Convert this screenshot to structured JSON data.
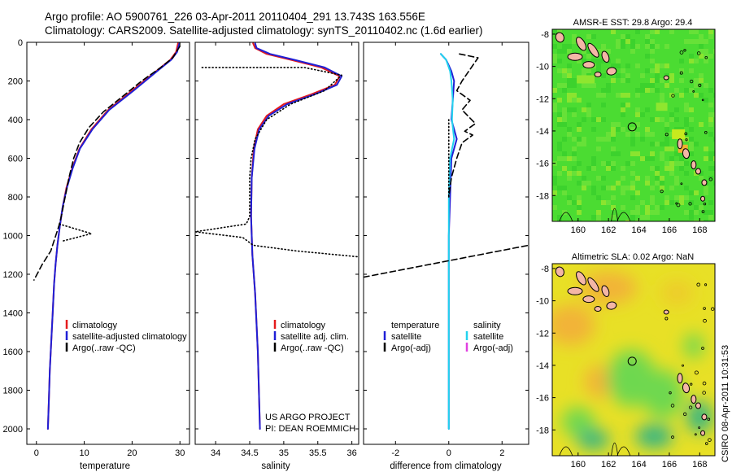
{
  "header": {
    "line1": "Argo profile: AO 5900761_226 03-Apr-2011 20110404_291 13.743S 163.556E",
    "line2": "Climatology: CARS2009. Satellite-adjusted climatology: synTS_20110402.nc (1.6d earlier)"
  },
  "chart_data": [
    {
      "id": "temperature",
      "type": "line",
      "xlabel": "temperature",
      "xlim": [
        -2,
        32
      ],
      "ylim": [
        2080,
        0
      ],
      "xticks": [
        0,
        10,
        20,
        30
      ],
      "yticks": [
        0,
        200,
        400,
        600,
        800,
        1000,
        1200,
        1400,
        1600,
        1800,
        2000
      ],
      "legend": {
        "placement": "bottom-left",
        "entries": [
          "climatology",
          "satellite-adjusted climatology",
          "Argo(..raw -QC)"
        ]
      },
      "series": [
        {
          "name": "climatology",
          "color": "#e41a1c",
          "style": "solid",
          "points": [
            [
              29.6,
              5
            ],
            [
              29.2,
              50
            ],
            [
              28,
              90
            ],
            [
              25,
              150
            ],
            [
              20,
              250
            ],
            [
              15,
              350
            ],
            [
              11.5,
              450
            ],
            [
              9,
              550
            ],
            [
              7.5,
              650
            ],
            [
              6.3,
              750
            ],
            [
              5.5,
              850
            ],
            [
              4.9,
              950
            ],
            [
              4.4,
              1050
            ],
            [
              4.0,
              1150
            ],
            [
              3.7,
              1250
            ],
            [
              3.4,
              1400
            ],
            [
              3.1,
              1550
            ],
            [
              2.8,
              1700
            ],
            [
              2.6,
              1850
            ],
            [
              2.4,
              2000
            ]
          ]
        },
        {
          "name": "satellite-adjusted climatology",
          "color": "#1f1fd6",
          "style": "solid",
          "points": [
            [
              29.9,
              5
            ],
            [
              29.4,
              50
            ],
            [
              28.2,
              90
            ],
            [
              25.2,
              150
            ],
            [
              20.3,
              250
            ],
            [
              15.2,
              350
            ],
            [
              11.7,
              450
            ],
            [
              9.1,
              550
            ],
            [
              7.6,
              650
            ],
            [
              6.4,
              750
            ],
            [
              5.5,
              850
            ],
            [
              4.9,
              950
            ],
            [
              4.4,
              1050
            ],
            [
              4.0,
              1150
            ],
            [
              3.7,
              1250
            ],
            [
              3.4,
              1400
            ],
            [
              3.1,
              1550
            ],
            [
              2.8,
              1700
            ],
            [
              2.6,
              1850
            ],
            [
              2.4,
              2000
            ]
          ]
        },
        {
          "name": "Argo(..raw -QC)",
          "color": "#000000",
          "style": "dashed",
          "points": [
            [
              30,
              20
            ],
            [
              29.5,
              40
            ],
            [
              28.5,
              80
            ],
            [
              26,
              130
            ],
            [
              22,
              200
            ],
            [
              17,
              300
            ],
            [
              14,
              360
            ],
            [
              11,
              440
            ],
            [
              9,
              520
            ],
            [
              7.8,
              600
            ],
            [
              6.8,
              700
            ],
            [
              6,
              800
            ],
            [
              5.2,
              900
            ],
            [
              4.7,
              950
            ],
            [
              3,
              1080
            ],
            [
              1.2,
              1150
            ],
            [
              -0.5,
              1230
            ]
          ]
        },
        {
          "name": "",
          "color": "#000000",
          "style": "dotted",
          "points": [
            [
              4.8,
              940
            ],
            [
              11.5,
              990
            ],
            [
              5.2,
              1030
            ]
          ]
        }
      ]
    },
    {
      "id": "salinity",
      "type": "line",
      "xlabel": "salinity",
      "xlim": [
        33.7,
        36.1
      ],
      "ylim": [
        2080,
        0
      ],
      "xticks": [
        34,
        34.5,
        35,
        35.5,
        36
      ],
      "xticklabels": [
        "34",
        "34.5",
        "35",
        "35.5",
        "36"
      ],
      "legend": {
        "placement": "bottom-center",
        "entries": [
          "climatology",
          "satellite adj. clim.",
          "Argo(..raw -QC)"
        ]
      },
      "annotation": [
        "US ARGO PROJECT",
        "PI: DEAN ROEMMICH"
      ],
      "series": [
        {
          "name": "climatology",
          "color": "#e41a1c",
          "style": "solid",
          "points": [
            [
              34.55,
              5
            ],
            [
              34.58,
              30
            ],
            [
              34.75,
              60
            ],
            [
              35.1,
              90
            ],
            [
              35.55,
              130
            ],
            [
              35.82,
              175
            ],
            [
              35.75,
              220
            ],
            [
              35.4,
              270
            ],
            [
              35,
              320
            ],
            [
              34.75,
              380
            ],
            [
              34.62,
              450
            ],
            [
              34.56,
              550
            ],
            [
              34.53,
              700
            ],
            [
              34.52,
              900
            ],
            [
              34.54,
              1100
            ],
            [
              34.58,
              1300
            ],
            [
              34.62,
              1600
            ],
            [
              34.65,
              2000
            ]
          ]
        },
        {
          "name": "satellite adj. clim.",
          "color": "#1f1fd6",
          "style": "solid",
          "points": [
            [
              34.58,
              5
            ],
            [
              34.6,
              30
            ],
            [
              34.8,
              60
            ],
            [
              35.15,
              90
            ],
            [
              35.6,
              130
            ],
            [
              35.85,
              175
            ],
            [
              35.78,
              220
            ],
            [
              35.45,
              270
            ],
            [
              35.05,
              320
            ],
            [
              34.78,
              380
            ],
            [
              34.64,
              450
            ],
            [
              34.57,
              550
            ],
            [
              34.53,
              700
            ],
            [
              34.52,
              900
            ],
            [
              34.54,
              1100
            ],
            [
              34.58,
              1300
            ],
            [
              34.62,
              1600
            ],
            [
              34.65,
              2000
            ]
          ]
        },
        {
          "name": "",
          "color": "#000000",
          "style": "dotted",
          "points": [
            [
              33.8,
              130
            ],
            [
              35.3,
              130
            ],
            [
              35.85,
              170
            ],
            [
              35.6,
              250
            ],
            [
              35.1,
              320
            ],
            [
              34.75,
              400
            ],
            [
              34.58,
              500
            ],
            [
              34.52,
              600
            ],
            [
              34.5,
              700
            ],
            [
              34.5,
              900
            ],
            [
              34.45,
              940
            ],
            [
              33.7,
              980
            ],
            [
              34.4,
              1010
            ],
            [
              34.55,
              1050
            ],
            [
              35.2,
              1080
            ],
            [
              36.1,
              1110
            ]
          ]
        }
      ]
    },
    {
      "id": "difference",
      "type": "line",
      "xlabel": "difference from climatology",
      "xlim": [
        -3.2,
        3.0
      ],
      "ylim": [
        2080,
        0
      ],
      "xticks": [
        -2,
        0,
        2
      ],
      "legend": {
        "placement": "bottom",
        "temperature_header": "temperature",
        "salinity_header": "salinity",
        "temperature_entries": [
          "satellite",
          "Argo(-adj)"
        ],
        "salinity_entries": [
          "satellite",
          "Argo(-adj)"
        ]
      },
      "series": [
        {
          "name": "satellite",
          "group": "temperature",
          "color": "#1f1fd6",
          "style": "solid",
          "points": [
            [
              -0.3,
              60
            ],
            [
              -0.1,
              90
            ],
            [
              0.1,
              150
            ],
            [
              0.2,
              200
            ],
            [
              0.15,
              300
            ],
            [
              0.1,
              400
            ],
            [
              0.3,
              500
            ],
            [
              0.1,
              600
            ],
            [
              0.05,
              800
            ],
            [
              0,
              1000
            ],
            [
              0,
              1200
            ],
            [
              0,
              2000
            ]
          ]
        },
        {
          "name": "satellite",
          "group": "salinity",
          "color": "#22d3ee",
          "style": "solid",
          "points": [
            [
              -0.3,
              60
            ],
            [
              -0.1,
              90
            ],
            [
              0.05,
              150
            ],
            [
              0.1,
              200
            ],
            [
              0.15,
              300
            ],
            [
              0.12,
              400
            ],
            [
              0.2,
              500
            ],
            [
              0.05,
              600
            ],
            [
              0,
              800
            ],
            [
              0,
              1000
            ],
            [
              0,
              1200
            ],
            [
              0,
              2000
            ]
          ]
        },
        {
          "name": "Argo(-adj)",
          "group": "temperature",
          "color": "#000000",
          "style": "dashed",
          "points": [
            [
              0.4,
              60
            ],
            [
              1.1,
              80
            ],
            [
              0.9,
              120
            ],
            [
              0.5,
              200
            ],
            [
              0.3,
              250
            ],
            [
              0.8,
              300
            ],
            [
              0.5,
              350
            ],
            [
              1.0,
              420
            ],
            [
              0.6,
              460
            ],
            [
              0.9,
              480
            ],
            [
              0.5,
              520
            ],
            [
              0.3,
              600
            ],
            [
              0.1,
              700
            ],
            [
              0,
              800
            ]
          ]
        },
        {
          "name": "",
          "group": "temperature",
          "color": "#000000",
          "style": "dashed",
          "points": [
            [
              -3.2,
              1215
            ],
            [
              3.0,
              1050
            ]
          ]
        },
        {
          "name": "",
          "group": "temperature",
          "color": "#000000",
          "style": "dotted",
          "points": [
            [
              0,
              400
            ],
            [
              0,
              800
            ]
          ]
        }
      ]
    },
    {
      "id": "sst-map",
      "type": "heatmap",
      "title": "AMSR-E SST: 29.8 Argo: 29.4",
      "xlim": [
        158.3,
        169
      ],
      "ylim": [
        -19.6,
        -7.7
      ],
      "xticks": [
        160,
        162,
        164,
        166,
        168
      ],
      "yticks": [
        -8,
        -10,
        -12,
        -14,
        -16,
        -18
      ],
      "marker": {
        "lon": 163.556,
        "lat": -13.743
      },
      "colors": {
        "base": "#4bdc32",
        "warm": "#c8ea1e",
        "hot": "#f07030",
        "land": "#f4b6a6"
      }
    },
    {
      "id": "sla-map",
      "type": "heatmap",
      "title": "Altimetric SLA: 0.02 Argo: NaN",
      "xlim": [
        158.3,
        169
      ],
      "ylim": [
        -19.6,
        -7.7
      ],
      "xticks": [
        160,
        162,
        164,
        166,
        168
      ],
      "yticks": [
        -8,
        -10,
        -12,
        -14,
        -16,
        -18
      ],
      "marker": {
        "lon": 163.556,
        "lat": -13.743
      },
      "colors": {
        "orange": "#f2b338",
        "yellow": "#e8e026",
        "green": "#6ed850",
        "teal": "#2fb386",
        "land": "#f4b6a6"
      }
    }
  ],
  "footer": {
    "vertical_text": "CSIRO 08-Apr-2011 10:31:53"
  }
}
